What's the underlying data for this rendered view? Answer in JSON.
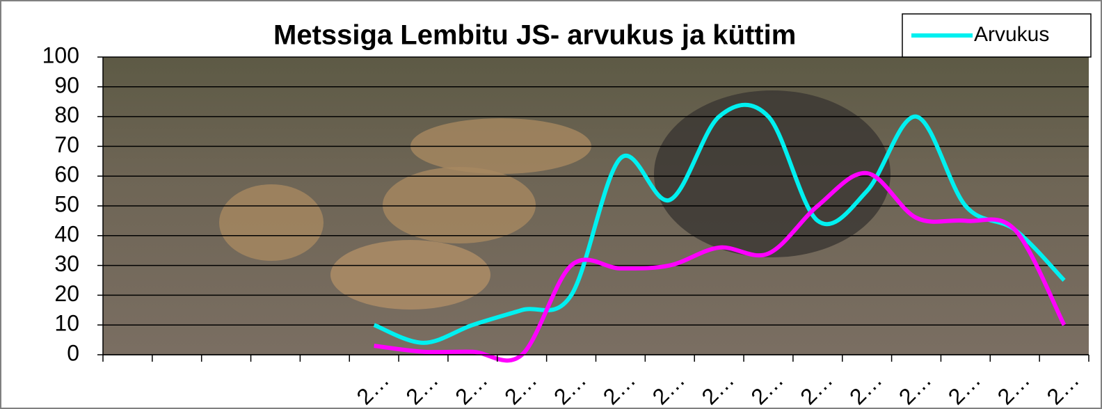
{
  "chart_data": {
    "type": "line",
    "title": "Metssiga Lembitu JS- arvukus ja küttim",
    "categories": [
      null,
      null,
      null,
      null,
      null,
      "2…",
      "2…",
      "2…",
      "2…",
      "2…",
      "2…",
      "2…",
      "2…",
      "2…",
      "2…",
      "2…",
      "2…",
      "2…",
      "2…",
      "2…"
    ],
    "series": [
      {
        "name": "Arvukus",
        "color": "#00f0f0",
        "values": [
          null,
          null,
          null,
          null,
          null,
          10,
          4,
          10,
          15,
          20,
          66,
          52,
          80,
          80,
          45,
          55,
          80,
          50,
          42,
          25
        ]
      },
      {
        "color": "#ff00ff",
        "values": [
          null,
          null,
          null,
          null,
          null,
          3,
          1,
          1,
          0,
          30,
          29,
          30,
          36,
          34,
          50,
          61,
          46,
          45,
          42,
          10
        ]
      }
    ],
    "ylim": [
      0,
      100
    ],
    "yticks": [
      0,
      10,
      20,
      30,
      40,
      50,
      60,
      70,
      80,
      90,
      100
    ],
    "grid": true,
    "legend": "top-right"
  }
}
